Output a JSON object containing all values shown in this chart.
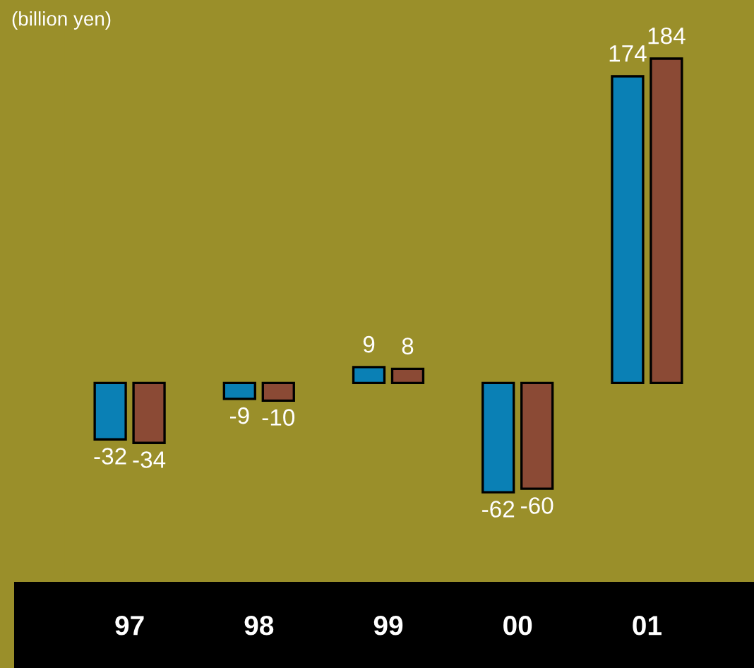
{
  "chart_data": {
    "type": "bar",
    "categories": [
      "97",
      "98",
      "99",
      "00",
      "01"
    ],
    "series": [
      {
        "color": "#0a80b5",
        "values": [
          -32,
          -9,
          9,
          -62,
          174
        ]
      },
      {
        "color": "#8b4a35",
        "values": [
          -34,
          -10,
          8,
          -60,
          184
        ]
      }
    ],
    "data_labels": true,
    "annotations": [
      "(billion yen)"
    ]
  }
}
